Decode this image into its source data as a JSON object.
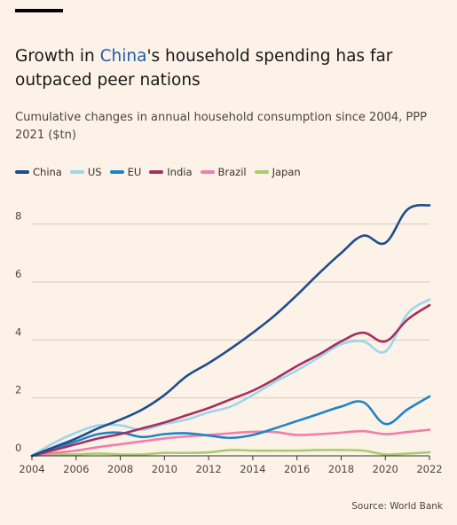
{
  "title": {
    "before": "Growth in ",
    "highlight": "China",
    "after": "'s household spending has far outpaced peer nations"
  },
  "subtitle": "Cumulative changes in annual household consumption since 2004, PPP 2021 ($tn)",
  "source": "Source: World Bank",
  "colors": {
    "China": "#1e4d8c",
    "US": "#9dd6ea",
    "EU": "#1f84c7",
    "India": "#a82e5e",
    "Brazil": "#f07ea9",
    "Japan": "#a9cd6e",
    "grid": "#d5cbc0",
    "axis": "#33302e",
    "highlight": "#1e5fa6"
  },
  "chart_data": {
    "type": "line",
    "x": [
      2004,
      2005,
      2006,
      2007,
      2008,
      2009,
      2010,
      2011,
      2012,
      2013,
      2014,
      2015,
      2016,
      2017,
      2018,
      2019,
      2020,
      2021,
      2022
    ],
    "series": [
      {
        "name": "China",
        "values": [
          0,
          0.3,
          0.6,
          0.95,
          1.25,
          1.6,
          2.1,
          2.75,
          3.2,
          3.7,
          4.25,
          4.85,
          5.55,
          6.3,
          7.0,
          7.6,
          7.35,
          8.5,
          8.65
        ]
      },
      {
        "name": "US",
        "values": [
          0,
          0.45,
          0.8,
          1.05,
          1.05,
          0.9,
          1.1,
          1.25,
          1.5,
          1.7,
          2.1,
          2.55,
          2.95,
          3.4,
          3.85,
          3.95,
          3.6,
          4.9,
          5.4
        ]
      },
      {
        "name": "EU",
        "values": [
          0,
          0.25,
          0.5,
          0.75,
          0.8,
          0.65,
          0.75,
          0.78,
          0.7,
          0.62,
          0.72,
          0.95,
          1.2,
          1.45,
          1.7,
          1.85,
          1.1,
          1.6,
          2.05
        ]
      },
      {
        "name": "India",
        "values": [
          0,
          0.2,
          0.4,
          0.6,
          0.75,
          0.95,
          1.15,
          1.4,
          1.65,
          1.95,
          2.25,
          2.65,
          3.1,
          3.5,
          3.95,
          4.25,
          3.95,
          4.7,
          5.2
        ]
      },
      {
        "name": "Brazil",
        "values": [
          0,
          0.1,
          0.18,
          0.3,
          0.4,
          0.5,
          0.6,
          0.67,
          0.72,
          0.78,
          0.83,
          0.82,
          0.72,
          0.75,
          0.8,
          0.85,
          0.75,
          0.82,
          0.9
        ]
      },
      {
        "name": "Japan",
        "values": [
          0,
          0.05,
          0.05,
          0.08,
          0.05,
          0.05,
          0.1,
          0.1,
          0.12,
          0.2,
          0.18,
          0.18,
          0.18,
          0.2,
          0.2,
          0.18,
          0.05,
          0.08,
          0.12
        ]
      }
    ],
    "xlabel": "",
    "ylabel": "",
    "xlim": [
      2004,
      2022
    ],
    "ylim": [
      0,
      9
    ],
    "yticks": [
      0,
      2,
      4,
      6,
      8
    ],
    "xticks": [
      2004,
      2006,
      2008,
      2010,
      2012,
      2014,
      2016,
      2018,
      2020,
      2022
    ],
    "grid": "horizontal",
    "legend": "top-left"
  }
}
